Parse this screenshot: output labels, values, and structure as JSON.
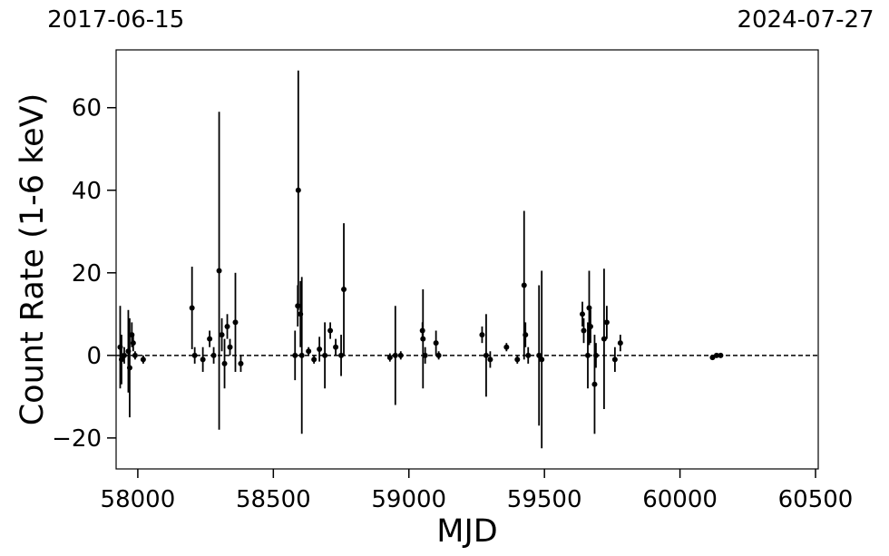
{
  "chart_data": {
    "type": "errorbar",
    "x_label": "MJD",
    "y_label": "Count Rate (1-6 keV)",
    "xlim": [
      57920,
      60510
    ],
    "ylim": [
      -27.5,
      74
    ],
    "xticks": [
      58000,
      58500,
      59000,
      59500,
      60000,
      60500
    ],
    "yticks": [
      {
        "value": -20,
        "label": "−20"
      },
      0,
      20,
      40,
      60
    ],
    "x2ticks": [
      {
        "value": 57919,
        "label": "2017-06-15"
      },
      {
        "value": 60518,
        "label": "2024-07-27"
      }
    ],
    "hline": 0,
    "color": "#000000",
    "x": [
      57935,
      57940,
      57950,
      57965,
      57970,
      57978,
      57983,
      57990,
      58020,
      58200,
      58210,
      58240,
      58265,
      58280,
      58300,
      58310,
      58320,
      58330,
      58340,
      58360,
      58380,
      58580,
      58590,
      58592,
      58600,
      58605,
      58630,
      58650,
      58670,
      58690,
      58710,
      58730,
      58750,
      58760,
      58930,
      58950,
      58970,
      59050,
      59052,
      59060,
      59100,
      59110,
      59270,
      59285,
      59300,
      59360,
      59400,
      59425,
      59430,
      59440,
      59480,
      59490,
      59640,
      59645,
      59660,
      59665,
      59670,
      59685,
      59690,
      59720,
      59730,
      59760,
      59780,
      60120,
      60135,
      60150
    ],
    "values": [
      2,
      -1,
      0,
      1,
      -3,
      5,
      3,
      0,
      -1,
      11.5,
      0,
      -1,
      4,
      0,
      20.5,
      5,
      -2,
      7,
      2,
      8,
      -2,
      0,
      12,
      40,
      10,
      0,
      1,
      -1,
      1.5,
      0,
      6,
      2,
      0,
      16,
      -0.5,
      0,
      0,
      6,
      4,
      0,
      3,
      0,
      5,
      0,
      -1,
      2,
      -1,
      17,
      5,
      0,
      0,
      -1,
      10,
      6,
      0,
      11.5,
      7,
      -7,
      0,
      4,
      8,
      -1,
      3,
      -0.5,
      0,
      0
    ],
    "errors": [
      10,
      6,
      2,
      10,
      12,
      3,
      2,
      1,
      1,
      10,
      2,
      3,
      2,
      2,
      38.5,
      4,
      6,
      3,
      2,
      12,
      2,
      6,
      5,
      29,
      8,
      19,
      1,
      1,
      3,
      8,
      2,
      2,
      5,
      16,
      1,
      12,
      1,
      2,
      12,
      2,
      3,
      1,
      2,
      10,
      2,
      1,
      1,
      18,
      3,
      2,
      17,
      21.5,
      3,
      3,
      8,
      9,
      4,
      12,
      3,
      17,
      4,
      3,
      2,
      0.5,
      0.5,
      0.3
    ]
  }
}
